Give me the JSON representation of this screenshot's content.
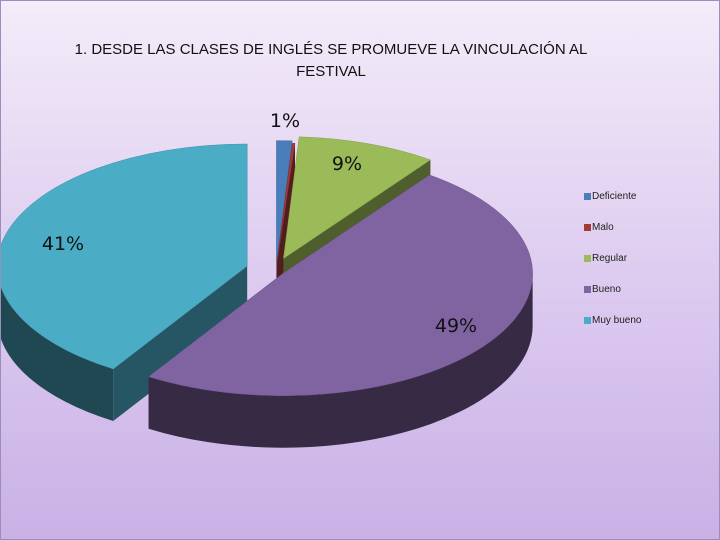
{
  "chart_data": {
    "type": "pie",
    "title": "1. DESDE LAS CLASES DE INGLÉS SE PROMUEVE LA VINCULACIÓN AL\nFESTIVAL",
    "categories": [
      "Deficiente",
      "Malo",
      "Regular",
      "Bueno",
      "Muy bueno"
    ],
    "values": [
      1,
      0,
      9,
      49,
      41
    ],
    "data_labels": [
      "1%",
      "",
      "9%",
      "49%",
      "41%"
    ],
    "colors": [
      "#4a7ebb",
      "#a33a3a",
      "#9bbb59",
      "#8064a2",
      "#4bacc6"
    ],
    "exploded": true,
    "three_d": true,
    "legend_position": "right"
  }
}
